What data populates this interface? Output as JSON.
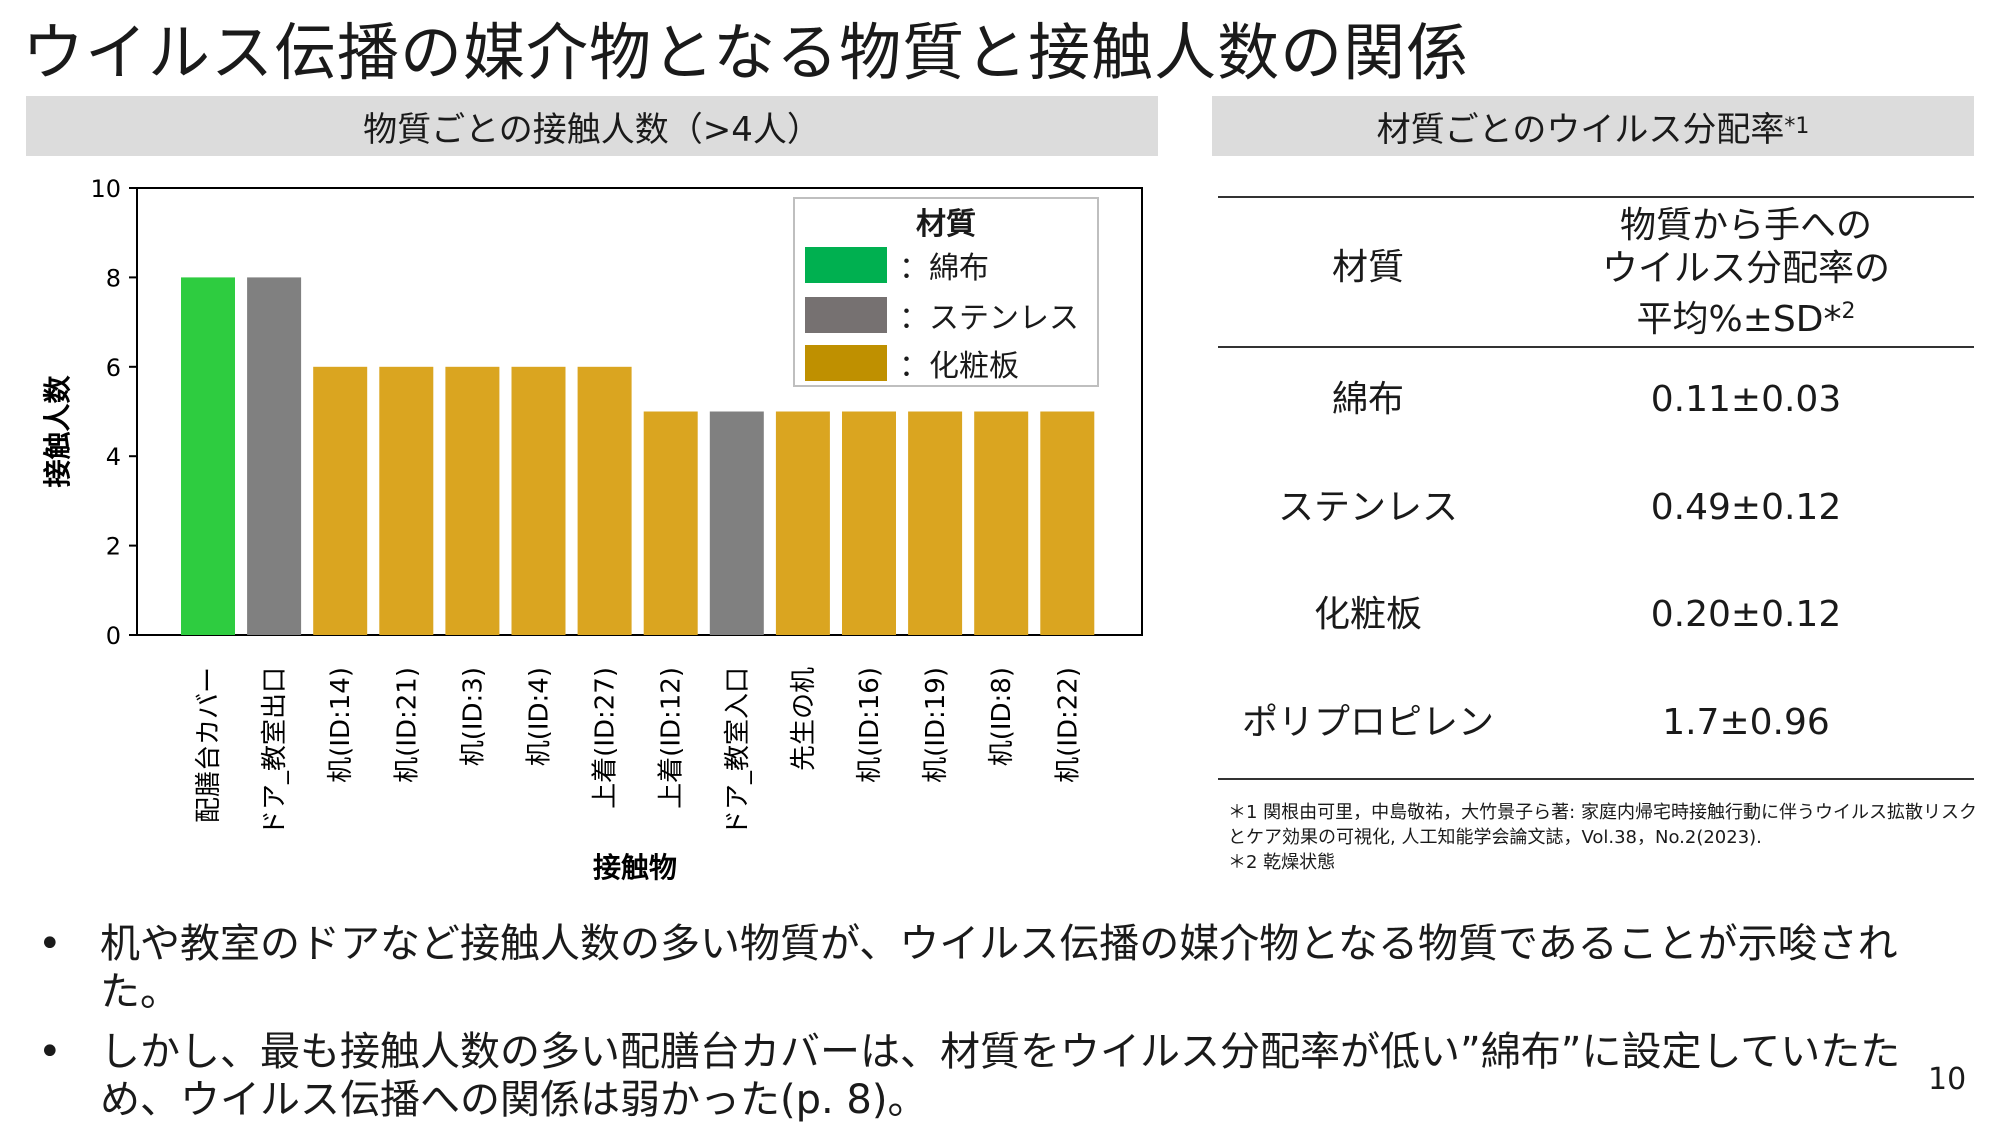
{
  "title": "ウイルス伝播の媒介物となる物質と接触人数の関係",
  "left_header": "物質ごとの接触人数（>4人）",
  "right_header": {
    "text": "材質ごとのウイルス分配率",
    "sup": "*1"
  },
  "colors": {
    "cotton": "#2ecc40",
    "stainless": "#808080",
    "laminate": "#daa520",
    "legend_cotton": "#00b050",
    "legend_stainless": "#767171",
    "legend_laminate": "#bf9000"
  },
  "chart_data": {
    "type": "bar",
    "categories": [
      "配膳台カバー",
      "ドア_教室出口",
      "机(ID:14)",
      "机(ID:21)",
      "机(ID:3)",
      "机(ID:4)",
      "上着(ID:27)",
      "上着(ID:12)",
      "ドア_教室入口",
      "先生の机",
      "机(ID:16)",
      "机(ID:19)",
      "机(ID:8)",
      "机(ID:22)"
    ],
    "values": [
      8,
      8,
      6,
      6,
      6,
      6,
      6,
      5,
      5,
      5,
      5,
      5,
      5,
      5
    ],
    "materials": [
      "綿布",
      "ステンレス",
      "化粧板",
      "化粧板",
      "化粧板",
      "化粧板",
      "化粧板",
      "化粧板",
      "ステンレス",
      "化粧板",
      "化粧板",
      "化粧板",
      "化粧板",
      "化粧板"
    ],
    "ylim": [
      0,
      10
    ],
    "yticks": [
      0,
      2,
      4,
      6,
      8,
      10
    ],
    "ylabel": "接触人数",
    "xlabel": "接触物",
    "legend": {
      "title": "材質",
      "items": [
        {
          "label": "：綿布",
          "material": "綿布"
        },
        {
          "label": "：ステンレス",
          "material": "ステンレス"
        },
        {
          "label": "：化粧板",
          "material": "化粧板"
        }
      ]
    }
  },
  "table": {
    "header_col1": "材質",
    "header_col2_lines": [
      "物質から手への",
      "ウイルス分配率の"
    ],
    "header_col2_last": "平均%±SD*",
    "header_col2_sup": "2",
    "rows": [
      {
        "material": "綿布",
        "value": "0.11±0.03"
      },
      {
        "material": "ステンレス",
        "value": "0.49±0.12"
      },
      {
        "material": "化粧板",
        "value": "0.20±0.12"
      },
      {
        "material": "ポリプロピレン",
        "value": "1.7±0.96"
      }
    ]
  },
  "notes": [
    "＊1 関根由可里，中島敬祐，大竹景子ら著: 家庭内帰宅時接触行動に伴うウイルス拡散リスクとケア効果の可視化, 人工知能学会論文誌，Vol.38，No.2(2023).",
    "＊2 乾燥状態"
  ],
  "bullets": [
    "机や教室のドアなど接触人数の多い物質が、ウイルス伝播の媒介物となる物質であることが示唆された。",
    "しかし、最も接触人数の多い配膳台カバーは、材質をウイルス分配率が低い”綿布”に設定していたため、ウイルス伝播への関係は弱かった(p. 8)。"
  ],
  "page_number": "10"
}
